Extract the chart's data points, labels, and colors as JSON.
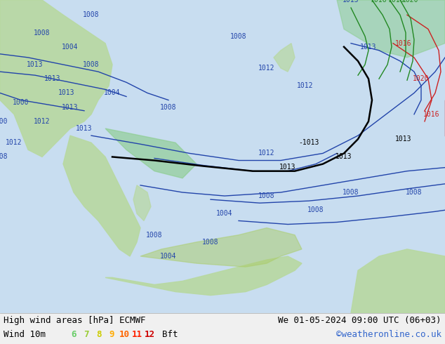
{
  "title_left": "High wind areas [hPa] ECMWF",
  "title_right": "We 01-05-2024 09:00 UTC (06+03)",
  "subtitle_left": "Wind 10m",
  "subtitle_right": "©weatheronline.co.uk",
  "legend_values": [
    "6",
    "7",
    "8",
    "9",
    "10",
    "11",
    "12"
  ],
  "legend_suffix": "Bft",
  "legend_colors": [
    "#66cc66",
    "#99cc33",
    "#cccc00",
    "#ffaa00",
    "#ff6600",
    "#ff2200",
    "#cc0000"
  ],
  "bg_color": "#e8f0e8",
  "map_bg": "#d0e8f0",
  "land_color": "#c8e8c0",
  "text_color": "#000000",
  "title_fontsize": 9,
  "legend_fontsize": 9,
  "fig_width": 6.34,
  "fig_height": 4.9,
  "dpi": 100
}
